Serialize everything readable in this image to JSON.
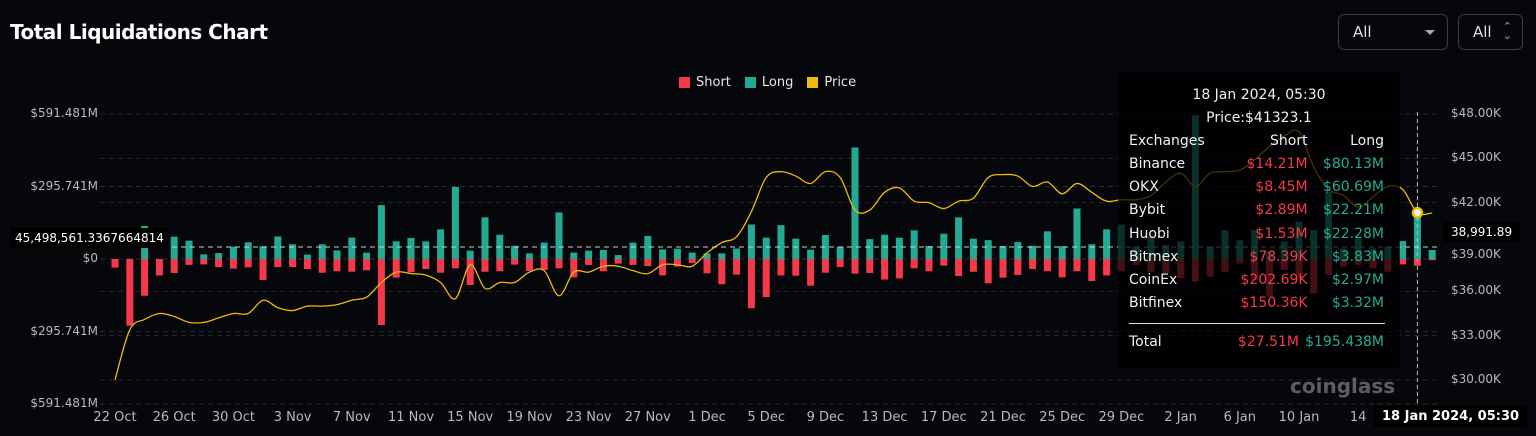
{
  "header": {
    "title": "Total Liquidations Chart",
    "select1": "All",
    "select2": "All"
  },
  "colors": {
    "short": "#f6394a",
    "long": "#22ab94",
    "price": "#f0b90b",
    "background": "#06070b"
  },
  "chart_data": {
    "type": "bar+line",
    "legend": [
      {
        "name": "Short",
        "color": "#f6394a"
      },
      {
        "name": "Long",
        "color": "#22ab94"
      },
      {
        "name": "Price",
        "color": "#f0b90b"
      }
    ],
    "legend_position": "top-center",
    "grid": true,
    "left_axis": {
      "ticks": [
        "$591.481M",
        "$295.741M",
        "$0",
        "$295.741M",
        "$591.481M"
      ],
      "tick_values": [
        591.481,
        295.741,
        0,
        -295.741,
        -591.481
      ],
      "unit": "M USD",
      "range": [
        -591.481,
        591.481
      ]
    },
    "right_axis": {
      "ticks": [
        "$48.00K",
        "$45.00K",
        "$42.00K",
        "$39.00K",
        "$36.00K",
        "$33.00K",
        "$30.00K"
      ],
      "tick_values": [
        48,
        45,
        42,
        39,
        36,
        33,
        30
      ],
      "unit": "K USD",
      "range": [
        30,
        48
      ]
    },
    "x_ticks": [
      "22 Oct",
      "26 Oct",
      "30 Oct",
      "3 Nov",
      "7 Nov",
      "11 Nov",
      "15 Nov",
      "19 Nov",
      "23 Nov",
      "27 Nov",
      "1 Dec",
      "5 Dec",
      "9 Dec",
      "13 Dec",
      "17 Dec",
      "21 Dec",
      "25 Dec",
      "29 Dec",
      "2 Jan",
      "6 Jan",
      "10 Jan",
      "14"
    ],
    "series": [
      {
        "name": "Long",
        "values": [
          0,
          0,
          135,
          0,
          91,
          75,
          19,
          24,
          50,
          68,
          52,
          92,
          60,
          18,
          60,
          35,
          87,
          26,
          220,
          72,
          86,
          72,
          121,
          294,
          34,
          170,
          99,
          54,
          23,
          67,
          190,
          26,
          34,
          37,
          16,
          67,
          94,
          39,
          42,
          26,
          23,
          23,
          43,
          141,
          87,
          138,
          83,
          38,
          98,
          50,
          455,
          81,
          99,
          87,
          117,
          53,
          103,
          170,
          83,
          77,
          53,
          69,
          54,
          113,
          52,
          206,
          60,
          121,
          140,
          50,
          91,
          57,
          71,
          586,
          50,
          118,
          77,
          118,
          30,
          71,
          152,
          118,
          274,
          43,
          84,
          43,
          50,
          73,
          195.438,
          37
        ]
      },
      {
        "name": "Short",
        "values": [
          35,
          272,
          150,
          67,
          57,
          24,
          22,
          33,
          39,
          34,
          86,
          33,
          33,
          41,
          56,
          50,
          52,
          46,
          269,
          76,
          54,
          41,
          56,
          38,
          106,
          52,
          50,
          23,
          49,
          45,
          38,
          75,
          24,
          50,
          19,
          24,
          29,
          67,
          31,
          16,
          58,
          103,
          64,
          201,
          155,
          67,
          68,
          109,
          56,
          33,
          60,
          57,
          84,
          79,
          38,
          50,
          27,
          69,
          52,
          99,
          76,
          65,
          41,
          50,
          75,
          50,
          90,
          67,
          50,
          24,
          52,
          58,
          79,
          92,
          72,
          52,
          18,
          85,
          153,
          45,
          79,
          140,
          65,
          31,
          24,
          38,
          52,
          22,
          27.51,
          5
        ]
      },
      {
        "name": "Price",
        "values": [
          30.0,
          33.4,
          34.1,
          34.5,
          34.3,
          33.9,
          33.9,
          34.2,
          34.5,
          34.5,
          35.4,
          34.9,
          34.7,
          35.0,
          35.0,
          35.1,
          35.4,
          35.6,
          36.6,
          37.3,
          37.2,
          37.1,
          36.6,
          35.5,
          37.8,
          36.2,
          36.6,
          36.6,
          37.3,
          37.4,
          35.7,
          37.3,
          37.3,
          37.7,
          37.7,
          37.4,
          37.2,
          37.8,
          37.8,
          37.7,
          38.6,
          39.3,
          39.7,
          41.4,
          43.7,
          44.1,
          43.8,
          43.3,
          44.1,
          43.7,
          41.5,
          41.5,
          42.7,
          43.0,
          42.1,
          42.0,
          41.6,
          42.1,
          42.3,
          43.7,
          43.9,
          43.8,
          43.1,
          43.4,
          42.6,
          43.3,
          42.7,
          42.1,
          42.2,
          42.2,
          42.5,
          43.4,
          44.0,
          43.1,
          44.0,
          44.1,
          44.2,
          44.9,
          45.8,
          46.5,
          46.8,
          44.4,
          42.9,
          42.5,
          41.7,
          42.4,
          43.1,
          42.9,
          41.3231,
          41.3
        ]
      }
    ]
  },
  "crosshair": {
    "left_value": "45,498,561.3367664814",
    "right_value": "38,991.89",
    "x_label": "18 Jan 2024, 05:30"
  },
  "tooltip": {
    "date": "18 Jan 2024, 05:30",
    "price": "Price:$41323.1",
    "headers": [
      "Exchanges",
      "Short",
      "Long"
    ],
    "rows": [
      {
        "exchange": "Binance",
        "short": "$14.21M",
        "long": "$80.13M"
      },
      {
        "exchange": "OKX",
        "short": "$8.45M",
        "long": "$60.69M"
      },
      {
        "exchange": "Bybit",
        "short": "$2.89M",
        "long": "$22.21M"
      },
      {
        "exchange": "Huobi",
        "short": "$1.53M",
        "long": "$22.28M"
      },
      {
        "exchange": "Bitmex",
        "short": "$78.39K",
        "long": "$3.83M"
      },
      {
        "exchange": "CoinEx",
        "short": "$202.69K",
        "long": "$2.97M"
      },
      {
        "exchange": "Bitfinex",
        "short": "$150.36K",
        "long": "$3.32M"
      }
    ],
    "total_label": "Total",
    "total_short": "$27.51M",
    "total_long": "$195.438M"
  },
  "watermark": "coinglass"
}
